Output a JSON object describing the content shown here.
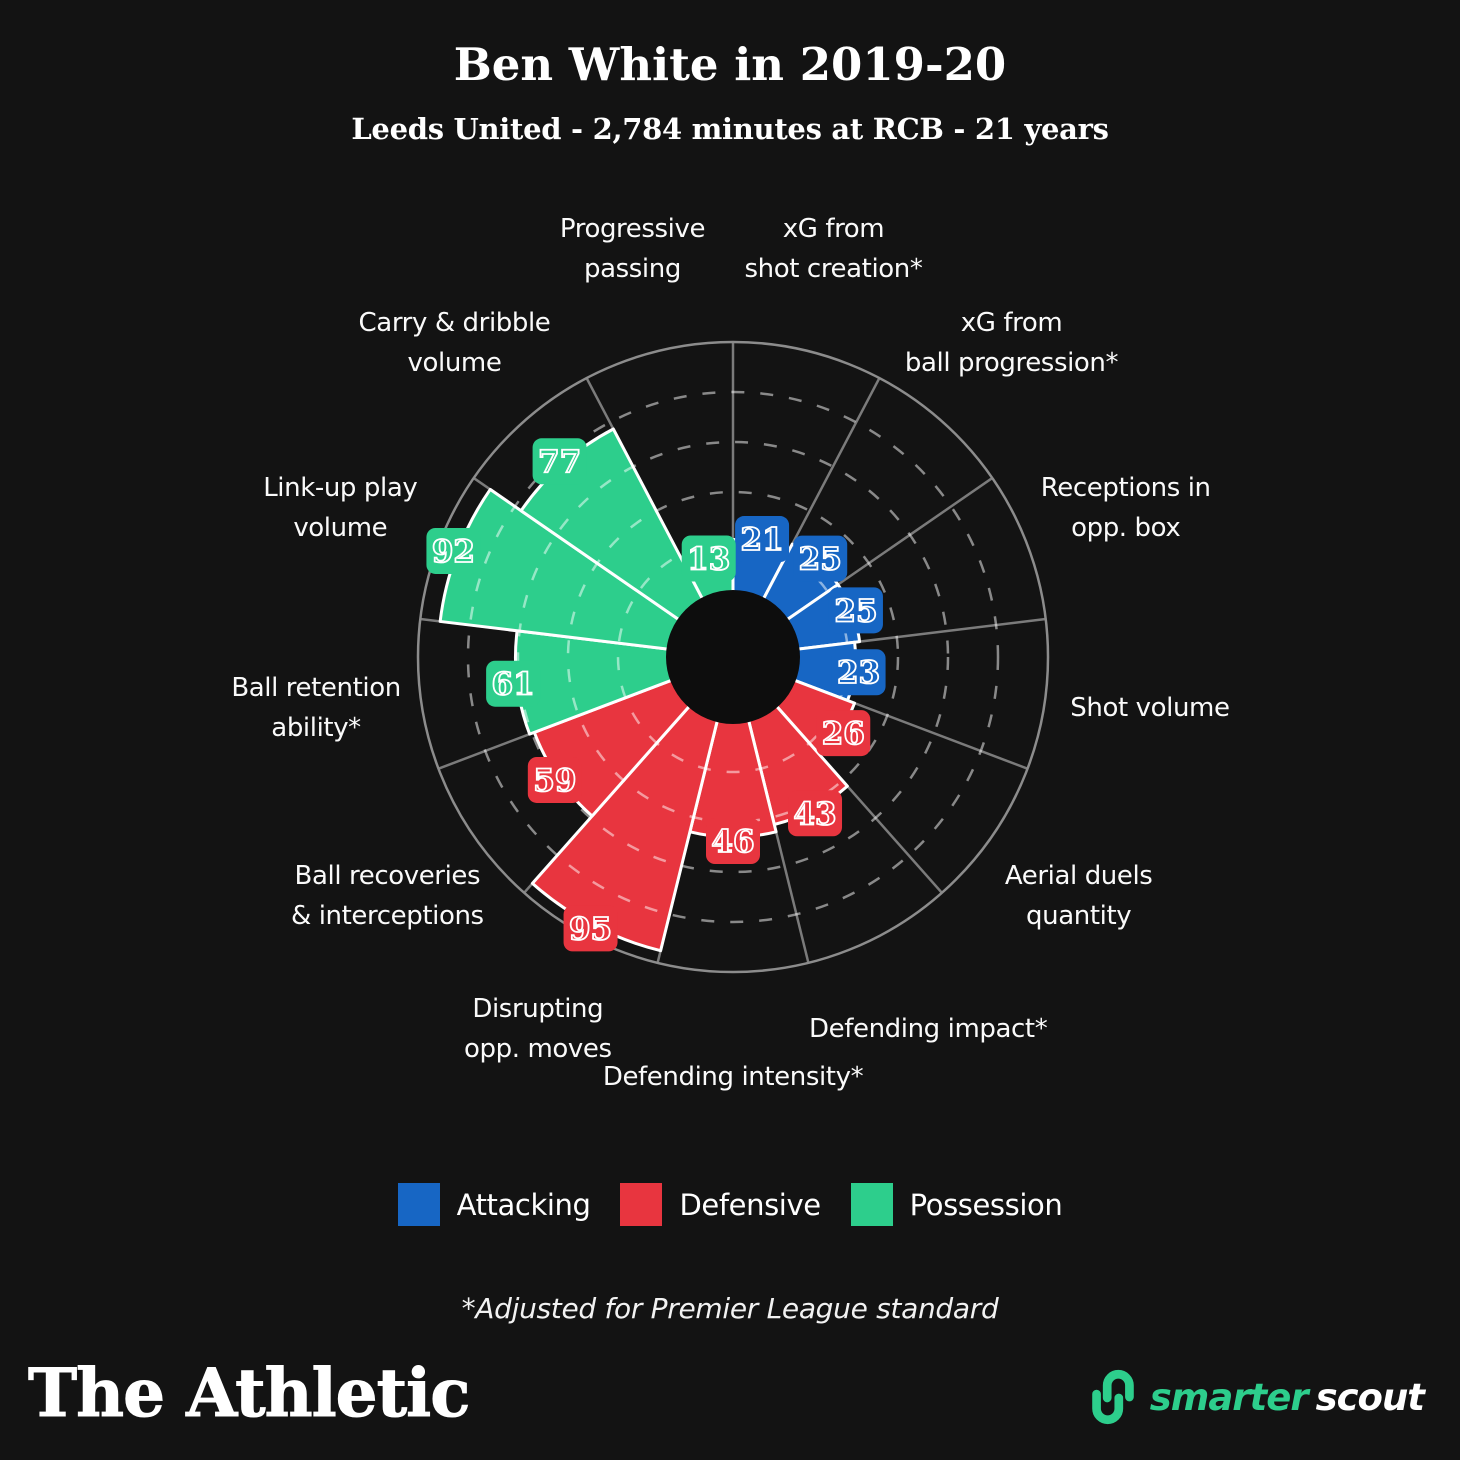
{
  "header": {
    "title": "Ben White in 2019-20",
    "subtitle": "Leeds United - 2,784 minutes at RCB - 21 years"
  },
  "chart_data": {
    "type": "polar-rose",
    "direction": "clockwise",
    "start": "top",
    "scale": {
      "min": 0,
      "max": 100,
      "gridlines": [
        20,
        40,
        60,
        80
      ]
    },
    "grid": "dashed-circles",
    "legend_position": "bottom",
    "series_colors": {
      "attacking": "#1766C4",
      "defensive": "#E8353F",
      "possession": "#2DCE8C"
    },
    "sectors": [
      {
        "label": "xG from shot creation*",
        "lines": [
          "xG from",
          "shot creation*"
        ],
        "value": 21,
        "group": "attacking"
      },
      {
        "label": "xG from ball progression*",
        "lines": [
          "xG from",
          "ball progression*"
        ],
        "value": 25,
        "group": "attacking"
      },
      {
        "label": "Receptions in opp. box",
        "lines": [
          "Receptions in",
          "opp. box"
        ],
        "value": 25,
        "group": "attacking"
      },
      {
        "label": "Shot volume",
        "lines": [
          "Shot volume"
        ],
        "value": 23,
        "group": "attacking"
      },
      {
        "label": "Aerial duels quantity",
        "lines": [
          "Aerial duels",
          "quantity"
        ],
        "value": 26,
        "group": "defensive"
      },
      {
        "label": "Defending impact*",
        "lines": [
          "Defending impact*"
        ],
        "value": 43,
        "group": "defensive"
      },
      {
        "label": "Defending intensity*",
        "lines": [
          "Defending intensity*"
        ],
        "value": 46,
        "group": "defensive"
      },
      {
        "label": "Disrupting opp. moves",
        "lines": [
          "Disrupting",
          "opp. moves"
        ],
        "value": 95,
        "group": "defensive"
      },
      {
        "label": "Ball recoveries & interceptions",
        "lines": [
          "Ball recoveries",
          "& interceptions"
        ],
        "value": 59,
        "group": "defensive"
      },
      {
        "label": "Ball retention ability*",
        "lines": [
          "Ball retention",
          "ability*"
        ],
        "value": 61,
        "group": "possession"
      },
      {
        "label": "Link-up play volume",
        "lines": [
          "Link-up play",
          "volume"
        ],
        "value": 92,
        "group": "possession"
      },
      {
        "label": "Carry & dribble volume",
        "lines": [
          "Carry & dribble",
          "volume"
        ],
        "value": 77,
        "group": "possession"
      },
      {
        "label": "Progressive passing",
        "lines": [
          "Progressive",
          "passing"
        ],
        "value": 13,
        "group": "possession"
      }
    ]
  },
  "legend": {
    "items": [
      {
        "label": "Attacking",
        "color": "#1766C4"
      },
      {
        "label": "Defensive",
        "color": "#E8353F"
      },
      {
        "label": "Possession",
        "color": "#2DCE8C"
      }
    ]
  },
  "footnote": "*Adjusted for Premier League standard",
  "footer": {
    "brand": "The Athletic",
    "partner_icon": "smarterscout-loops-icon",
    "partner_name_primary": "smarter",
    "partner_name_secondary": "scout"
  }
}
